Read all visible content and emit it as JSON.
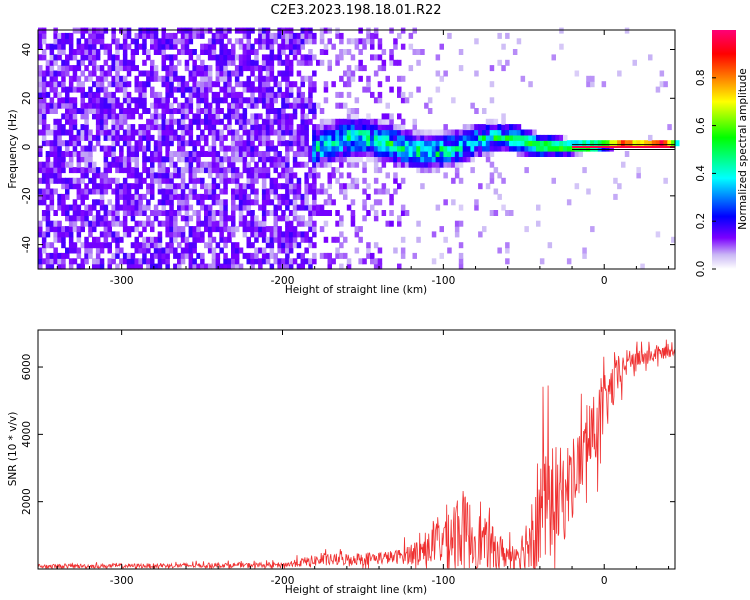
{
  "title": "C2E3.2023.198.18.01.R22",
  "colors": {
    "colormap": [
      "#ffffff",
      "#c9b6f5",
      "#7b00ff",
      "#0000ff",
      "#00ffff",
      "#00ff00",
      "#ffff00",
      "#ff8000",
      "#ff0000",
      "#ff0077"
    ],
    "snr_line": "#ef3030",
    "narrowband_line": "#000000"
  },
  "chart_data": [
    {
      "type": "heatmap",
      "title": "",
      "xlabel": "Height of straight line (km)",
      "ylabel": "Frequency (Hz)",
      "xlim": [
        -352,
        44
      ],
      "ylim": [
        -50,
        48
      ],
      "xticks": [
        -300,
        -200,
        -100,
        0
      ],
      "yticks": [
        -40,
        -20,
        0,
        20,
        40
      ],
      "colorbar": {
        "label": "Normalized spectral amplitude",
        "range": [
          0,
          1
        ],
        "ticks": [
          "0.0",
          "0.2",
          "0.4",
          "0.6",
          "0.8"
        ]
      },
      "regions": [
        {
          "x": [
            -352,
            -180
          ],
          "y_span": [
            -50,
            48
          ],
          "description_level": "broadband noise, amplitude 0.2-0.5"
        },
        {
          "x": [
            -180,
            -125
          ],
          "y_span": [
            -50,
            48
          ],
          "description_level": "sparse noise, amplitude 0.1-0.3"
        },
        {
          "x": [
            -180,
            -60
          ],
          "y_span": [
            -10,
            10
          ],
          "description_level": "signal band, amplitude 0.3-0.6"
        },
        {
          "x": [
            -60,
            44
          ],
          "y_span": [
            -3,
            3
          ],
          "description_level": "narrow carrier near 0 Hz, amplitude 0.6-1.0"
        }
      ],
      "signal_band_halfwidth": [
        [
          -180,
          10
        ],
        [
          -120,
          9
        ],
        [
          -80,
          8
        ],
        [
          -55,
          6
        ],
        [
          -30,
          4
        ],
        [
          0,
          2
        ],
        [
          20,
          1.5
        ],
        [
          44,
          1
        ]
      ]
    },
    {
      "type": "line",
      "title": "",
      "xlabel": "Height of straight line (km)",
      "ylabel": "SNR (10 * v/v)",
      "xlim": [
        -352,
        44
      ],
      "ylim": [
        0,
        7100
      ],
      "xticks": [
        -300,
        -200,
        -100,
        0
      ],
      "yticks": [
        2000,
        4000,
        6000
      ],
      "envelope": [
        {
          "x": -352,
          "base": 80,
          "amp": 120
        },
        {
          "x": -200,
          "base": 120,
          "amp": 150
        },
        {
          "x": -180,
          "base": 250,
          "amp": 350
        },
        {
          "x": -130,
          "base": 350,
          "amp": 400
        },
        {
          "x": -110,
          "base": 600,
          "amp": 900
        },
        {
          "x": -90,
          "base": 1200,
          "amp": 2600
        },
        {
          "x": -80,
          "base": 900,
          "amp": 1800
        },
        {
          "x": -60,
          "base": 400,
          "amp": 800
        },
        {
          "x": -50,
          "base": 600,
          "amp": 1200
        },
        {
          "x": -40,
          "base": 1800,
          "amp": 4000
        },
        {
          "x": -25,
          "base": 2200,
          "amp": 2800
        },
        {
          "x": -15,
          "base": 3200,
          "amp": 2200
        },
        {
          "x": -5,
          "base": 4200,
          "amp": 2200
        },
        {
          "x": 5,
          "base": 5400,
          "amp": 1500
        },
        {
          "x": 15,
          "base": 6200,
          "amp": 700
        },
        {
          "x": 44,
          "base": 6500,
          "amp": 300
        }
      ]
    }
  ]
}
